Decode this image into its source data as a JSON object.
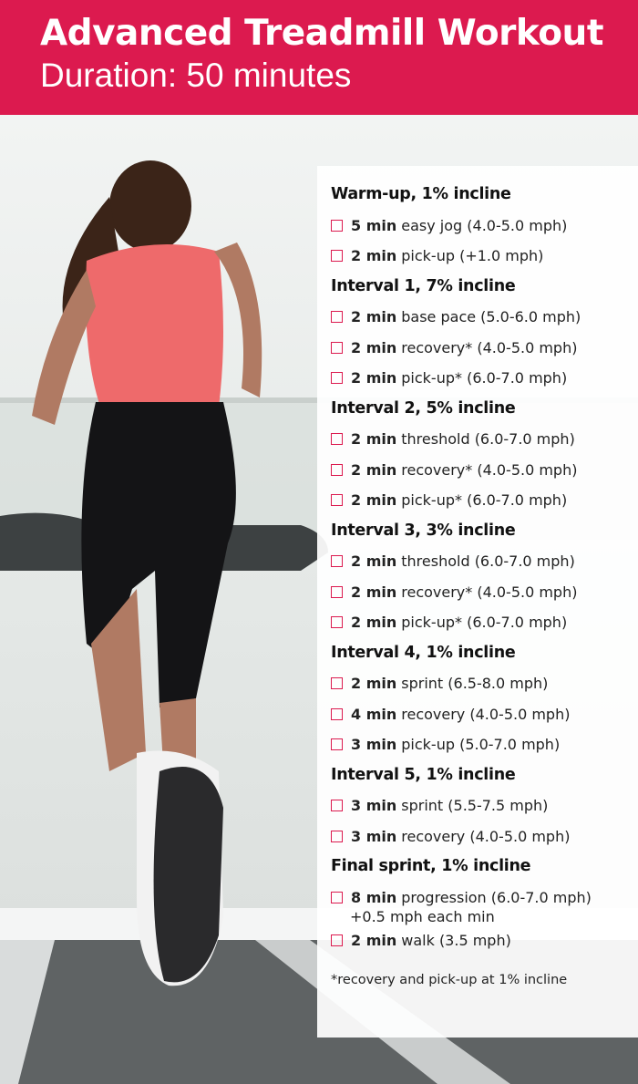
{
  "header": {
    "title": "Advanced Treadmill Workout",
    "subtitle": "Duration: 50 minutes",
    "background_color": "#dc1a4f"
  },
  "photo": {
    "description_icon": "runner-on-treadmill-photo"
  },
  "sections": [
    {
      "heading": "Warm-up, 1% incline",
      "items": [
        {
          "duration": "5 min",
          "text": "easy jog (4.0-5.0 mph)"
        },
        {
          "duration": "2 min",
          "text": "pick-up (+1.0 mph)"
        }
      ]
    },
    {
      "heading": "Interval 1, 7% incline",
      "items": [
        {
          "duration": "2 min",
          "text": "base pace (5.0-6.0 mph)"
        },
        {
          "duration": "2 min",
          "text": "recovery* (4.0-5.0 mph)"
        },
        {
          "duration": "2 min",
          "text": "pick-up* (6.0-7.0 mph)"
        }
      ]
    },
    {
      "heading": "Interval 2, 5% incline",
      "items": [
        {
          "duration": "2 min",
          "text": "threshold (6.0-7.0 mph)"
        },
        {
          "duration": "2 min",
          "text": "recovery* (4.0-5.0 mph)"
        },
        {
          "duration": "2 min",
          "text": "pick-up* (6.0-7.0 mph)"
        }
      ]
    },
    {
      "heading": "Interval 3, 3% incline",
      "items": [
        {
          "duration": "2 min",
          "text": "threshold (6.0-7.0 mph)"
        },
        {
          "duration": "2 min",
          "text": "recovery* (4.0-5.0 mph)"
        },
        {
          "duration": "2 min",
          "text": "pick-up* (6.0-7.0 mph)"
        }
      ]
    },
    {
      "heading": "Interval 4, 1% incline",
      "items": [
        {
          "duration": "2 min",
          "text": "sprint (6.5-8.0 mph)"
        },
        {
          "duration": "4 min",
          "text": "recovery (4.0-5.0 mph)"
        },
        {
          "duration": "3 min",
          "text": "pick-up (5.0-7.0 mph)"
        }
      ]
    },
    {
      "heading": "Interval 5, 1% incline",
      "items": [
        {
          "duration": "3 min",
          "text": "sprint (5.5-7.5 mph)"
        },
        {
          "duration": "3 min",
          "text": "recovery (4.0-5.0 mph)"
        }
      ]
    },
    {
      "heading": "Final sprint, 1% incline",
      "items": [
        {
          "duration": "8 min",
          "text": "progression (6.0-7.0 mph)",
          "note": "+0.5 mph each min"
        },
        {
          "duration": "2 min",
          "text": "walk (3.5 mph)"
        }
      ]
    }
  ],
  "footnote": "*recovery and pick-up at 1% incline"
}
